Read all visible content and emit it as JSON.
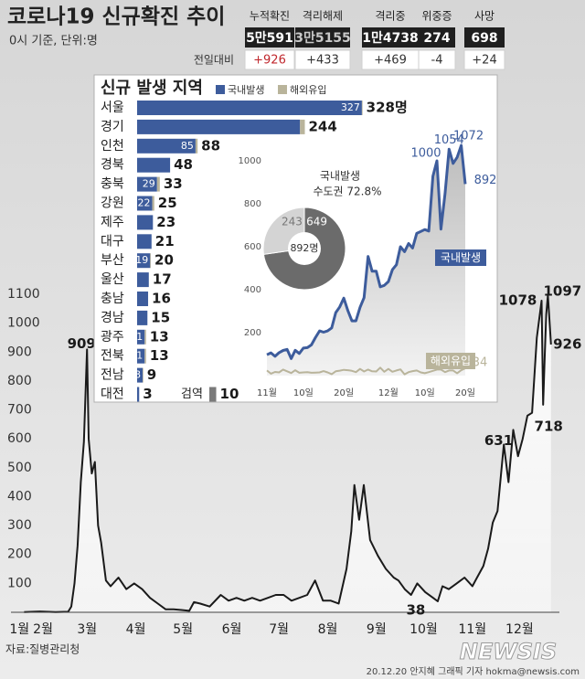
{
  "header": {
    "title": "코로나19 신규확진 추이",
    "subtitle": "0시 기준, 단위:명"
  },
  "stats": {
    "change_label": "전일대비",
    "columns": [
      {
        "label": "누적확진",
        "value": "5만591",
        "change": "+926"
      },
      {
        "label": "격리해제",
        "value": "3만5155",
        "change": "+433"
      },
      {
        "label": "격리중",
        "value": "1만4738",
        "change": "+469"
      },
      {
        "label": "위중증",
        "value": "274",
        "change": "-4"
      },
      {
        "label": "사망",
        "value": "698",
        "change": "+24"
      }
    ]
  },
  "footer": {
    "source": "자료:질병관리청",
    "credit": "20.12.20 안지혜 그래픽 기자 hokma@newsis.com",
    "logo": "NEWSIS"
  },
  "chart_data": [
    {
      "type": "line",
      "color": "#1a1a1a",
      "x": [
        20,
        30,
        40,
        48,
        50,
        52,
        54,
        56,
        58,
        60,
        61,
        63,
        65,
        67,
        69,
        72,
        75,
        80,
        85,
        90,
        95,
        100,
        105,
        110,
        115,
        120,
        125,
        128,
        132,
        138,
        145,
        150,
        155,
        160,
        165,
        170,
        175,
        180,
        185,
        190,
        195,
        200,
        205,
        210,
        215,
        220,
        225,
        228,
        230,
        233,
        236,
        240,
        245,
        250,
        255,
        258,
        262,
        266,
        270,
        275,
        280,
        283,
        286,
        290,
        295,
        300,
        305,
        308,
        312,
        315,
        318,
        321,
        325,
        328,
        331,
        334,
        337,
        340,
        343,
        346,
        349,
        350,
        351,
        352,
        353,
        355
      ],
      "values": [
        1,
        3,
        1,
        2,
        20,
        100,
        230,
        450,
        590,
        909,
        600,
        480,
        520,
        300,
        240,
        110,
        90,
        120,
        80,
        100,
        80,
        50,
        30,
        10,
        10,
        8,
        5,
        35,
        30,
        20,
        60,
        40,
        50,
        40,
        50,
        40,
        50,
        60,
        60,
        40,
        50,
        60,
        110,
        40,
        40,
        30,
        150,
        280,
        440,
        320,
        440,
        250,
        195,
        150,
        120,
        110,
        80,
        60,
        100,
        70,
        50,
        38,
        90,
        80,
        100,
        120,
        90,
        120,
        160,
        220,
        310,
        350,
        580,
        450,
        631,
        540,
        600,
        680,
        690,
        950,
        1078,
        718,
        880,
        1030,
        1097,
        926
      ],
      "xlim": [
        0,
        365
      ],
      "ylim": [
        0,
        1100
      ],
      "xticks": [
        {
          "value": 17,
          "label": "1월"
        },
        {
          "value": 32,
          "label": "2월"
        },
        {
          "value": 60,
          "label": "3월"
        },
        {
          "value": 91,
          "label": "4월"
        },
        {
          "value": 121,
          "label": "5월"
        },
        {
          "value": 152,
          "label": "6월"
        },
        {
          "value": 182,
          "label": "7월"
        },
        {
          "value": 213,
          "label": "8월"
        },
        {
          "value": 244,
          "label": "9월"
        },
        {
          "value": 274,
          "label": "10월"
        },
        {
          "value": 305,
          "label": "11월"
        },
        {
          "value": 335,
          "label": "12월"
        }
      ],
      "yticks": [
        100,
        200,
        300,
        400,
        500,
        600,
        700,
        800,
        900,
        1000,
        1100
      ],
      "annotations": [
        {
          "x": 60,
          "value": 909
        },
        {
          "x": 283,
          "value": 38
        },
        {
          "x": 331,
          "value": 631
        },
        {
          "x": 349,
          "value": 1078
        },
        {
          "x": 350,
          "value": 718
        },
        {
          "x": 353,
          "value": 1097
        },
        {
          "x": 355,
          "value": 926
        }
      ]
    },
    {
      "type": "stacked-bar-horizontal",
      "title": "신규 발생 지역",
      "categories": [
        "서울",
        "경기",
        "인천",
        "경북",
        "충북",
        "강원",
        "제주",
        "대구",
        "부산",
        "울산",
        "충남",
        "경남",
        "광주",
        "전북",
        "전남",
        "대전"
      ],
      "series": [
        {
          "name": "국내발생",
          "color": "#3d5c9c",
          "values": [
            327,
            237,
            85,
            48,
            29,
            22,
            23,
            21,
            19,
            17,
            16,
            15,
            11,
            11,
            8,
            3
          ],
          "value_labels": [
            "327",
            null,
            "85",
            null,
            "29",
            "22",
            null,
            null,
            "19",
            null,
            null,
            null,
            "11",
            "11",
            "8",
            null
          ]
        },
        {
          "name": "해외유입",
          "color": "#b9b49b",
          "values": [
            1,
            7,
            3,
            0,
            4,
            3,
            0,
            0,
            1,
            0,
            0,
            0,
            2,
            2,
            1,
            0
          ]
        }
      ],
      "total_labels": [
        "328명",
        "244",
        "88",
        "48",
        "33",
        "25",
        "23",
        "21",
        "20",
        "17",
        "16",
        "15",
        "13",
        "13",
        "9",
        "3"
      ],
      "quarantine": {
        "label": "검역",
        "value": 10,
        "color": "#7a7a7a"
      }
    },
    {
      "type": "line",
      "x": [
        0,
        1,
        2,
        3,
        4,
        5,
        6,
        7,
        8,
        9,
        10,
        11,
        12,
        13,
        14,
        15,
        16,
        17,
        18,
        19,
        20,
        21,
        22,
        23,
        24,
        25,
        26,
        27,
        28,
        29,
        30,
        31,
        32,
        33,
        34,
        35,
        36,
        37,
        38,
        39,
        40,
        41,
        42,
        43,
        44,
        45,
        46,
        47,
        48,
        49
      ],
      "series": [
        {
          "name": "국내발생",
          "color": "#3d5c9c",
          "values": [
            97,
            106,
            90,
            107,
            117,
            122,
            79,
            118,
            103,
            128,
            130,
            143,
            177,
            208,
            202,
            208,
            222,
            293,
            320,
            361,
            302,
            255,
            255,
            318,
            363,
            555,
            486,
            486,
            413,
            420,
            438,
            493,
            516,
            600,
            577,
            615,
            594,
            662,
            671,
            680,
            673,
            928,
            1000,
            682,
            848,
            1054,
            988,
            1016,
            1072,
            892
          ]
        },
        {
          "name": "해외유입",
          "color": "#b9b49b",
          "values": [
            24,
            9,
            17,
            15,
            28,
            20,
            12,
            25,
            13,
            15,
            16,
            13,
            14,
            15,
            21,
            15,
            7,
            20,
            23,
            27,
            25,
            22,
            16,
            31,
            19,
            28,
            20,
            19,
            37,
            18,
            31,
            18,
            24,
            29,
            6,
            16,
            21,
            24,
            15,
            11,
            16,
            22,
            28,
            28,
            16,
            24,
            24,
            11,
            25,
            34
          ]
        }
      ],
      "xlim": [
        0,
        49
      ],
      "ylim": [
        0,
        1100
      ],
      "xticks": [
        {
          "value": 0,
          "label": "11월"
        },
        {
          "value": 9,
          "label": "10일"
        },
        {
          "value": 19,
          "label": "20일"
        },
        {
          "value": 30,
          "label": "12월"
        },
        {
          "value": 39,
          "label": "10일"
        },
        {
          "value": 49,
          "label": "20일"
        }
      ],
      "yticks": [
        200,
        400,
        600,
        800,
        1000
      ],
      "annotations": [
        {
          "series": 0,
          "x": 42,
          "value": 1000
        },
        {
          "series": 0,
          "x": 45,
          "value": 1054
        },
        {
          "series": 0,
          "x": 48,
          "value": 1072
        },
        {
          "series": 0,
          "x": 49,
          "value": 892
        },
        {
          "series": 1,
          "x": 49,
          "value": 34
        }
      ]
    },
    {
      "type": "pie",
      "title": "국내발생",
      "annotation": "수도권 72.8%",
      "values": [
        649,
        243
      ],
      "colors": [
        "#6b6b6b",
        "#d4d4d4"
      ],
      "center_label": "892명"
    }
  ]
}
